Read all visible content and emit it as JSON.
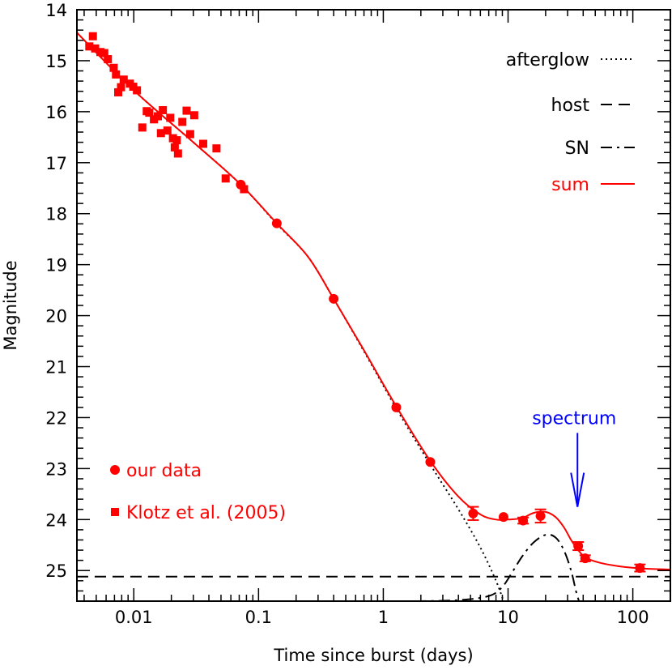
{
  "chart_data": {
    "type": "scatter",
    "xlabel": "Time since burst (days)",
    "ylabel": "Magnitude",
    "x_scale": "log",
    "xlim": [
      0.0035,
      200
    ],
    "ylim": [
      25.6,
      14
    ],
    "y_inverted": true,
    "x_ticks": [
      {
        "value": 0.01,
        "label": "0.01"
      },
      {
        "value": 0.1,
        "label": "0.1"
      },
      {
        "value": 1,
        "label": "1"
      },
      {
        "value": 10,
        "label": "10"
      },
      {
        "value": 100,
        "label": "100"
      }
    ],
    "y_ticks": [
      {
        "value": 14,
        "label": "14"
      },
      {
        "value": 15,
        "label": "15"
      },
      {
        "value": 16,
        "label": "16"
      },
      {
        "value": 17,
        "label": "17"
      },
      {
        "value": 18,
        "label": "18"
      },
      {
        "value": 19,
        "label": "19"
      },
      {
        "value": 20,
        "label": "20"
      },
      {
        "value": 21,
        "label": "21"
      },
      {
        "value": 22,
        "label": "22"
      },
      {
        "value": 23,
        "label": "23"
      },
      {
        "value": 24,
        "label": "24"
      },
      {
        "value": 25,
        "label": "25"
      }
    ],
    "series": [
      {
        "name": "our data",
        "marker": "circle",
        "color": "#ff0000",
        "points": [
          {
            "x": 0.072,
            "y": 17.43
          },
          {
            "x": 0.14,
            "y": 18.19
          },
          {
            "x": 0.4,
            "y": 19.67
          },
          {
            "x": 1.27,
            "y": 21.8
          },
          {
            "x": 2.38,
            "y": 22.87
          },
          {
            "x": 5.25,
            "y": 23.88,
            "err": 0.13
          },
          {
            "x": 9.2,
            "y": 23.95
          },
          {
            "x": 13.2,
            "y": 24.02,
            "err": 0.06
          },
          {
            "x": 18.2,
            "y": 23.93,
            "err": 0.13
          },
          {
            "x": 36.5,
            "y": 24.52,
            "err": 0.08
          },
          {
            "x": 41.5,
            "y": 24.76,
            "err": 0.06
          },
          {
            "x": 114,
            "y": 24.95,
            "err": 0.07
          }
        ]
      },
      {
        "name": "Klotz et al. (2005)",
        "marker": "square",
        "color": "#ff0000",
        "points": [
          {
            "x": 0.0044,
            "y": 14.72
          },
          {
            "x": 0.0047,
            "y": 14.52
          },
          {
            "x": 0.0049,
            "y": 14.76
          },
          {
            "x": 0.0054,
            "y": 14.83
          },
          {
            "x": 0.0058,
            "y": 14.85
          },
          {
            "x": 0.0062,
            "y": 14.97
          },
          {
            "x": 0.0069,
            "y": 15.14
          },
          {
            "x": 0.0072,
            "y": 15.27
          },
          {
            "x": 0.0075,
            "y": 15.62
          },
          {
            "x": 0.0079,
            "y": 15.52
          },
          {
            "x": 0.0083,
            "y": 15.37
          },
          {
            "x": 0.0093,
            "y": 15.45
          },
          {
            "x": 0.0099,
            "y": 15.51
          },
          {
            "x": 0.0106,
            "y": 15.58
          },
          {
            "x": 0.0117,
            "y": 16.31
          },
          {
            "x": 0.0127,
            "y": 15.99
          },
          {
            "x": 0.0133,
            "y": 16.02
          },
          {
            "x": 0.0145,
            "y": 16.15
          },
          {
            "x": 0.0156,
            "y": 16.09
          },
          {
            "x": 0.0165,
            "y": 16.42
          },
          {
            "x": 0.0171,
            "y": 15.97
          },
          {
            "x": 0.0186,
            "y": 16.37
          },
          {
            "x": 0.0196,
            "y": 16.12
          },
          {
            "x": 0.0206,
            "y": 16.52
          },
          {
            "x": 0.0213,
            "y": 16.7
          },
          {
            "x": 0.0221,
            "y": 16.56
          },
          {
            "x": 0.0226,
            "y": 16.82
          },
          {
            "x": 0.0245,
            "y": 16.2
          },
          {
            "x": 0.0265,
            "y": 15.98
          },
          {
            "x": 0.0283,
            "y": 16.44
          },
          {
            "x": 0.0305,
            "y": 16.07
          },
          {
            "x": 0.036,
            "y": 16.63
          },
          {
            "x": 0.046,
            "y": 16.72
          },
          {
            "x": 0.0545,
            "y": 17.31
          },
          {
            "x": 0.0765,
            "y": 17.52
          }
        ]
      }
    ],
    "models": [
      {
        "name": "afterglow",
        "style": "dotted",
        "color": "#000000",
        "points": [
          [
            0.0035,
            14.45
          ],
          [
            0.01,
            15.58
          ],
          [
            0.03,
            16.6
          ],
          [
            0.07,
            17.4
          ],
          [
            0.14,
            18.2
          ],
          [
            0.25,
            18.85
          ],
          [
            0.4,
            19.67
          ],
          [
            0.7,
            20.7
          ],
          [
            1.27,
            21.82
          ],
          [
            2.38,
            22.92
          ],
          [
            4,
            23.8
          ],
          [
            6,
            24.55
          ],
          [
            8,
            25.2
          ],
          [
            9.2,
            25.6
          ]
        ]
      },
      {
        "name": "host",
        "style": "dashed",
        "color": "#000000",
        "points": [
          [
            0.0035,
            25.12
          ],
          [
            200,
            25.12
          ]
        ]
      },
      {
        "name": "SN",
        "style": "dashdot",
        "color": "#000000",
        "points": [
          [
            1.8,
            25.6
          ],
          [
            4,
            25.58
          ],
          [
            7,
            25.5
          ],
          [
            9,
            25.32
          ],
          [
            11,
            25.0
          ],
          [
            13,
            24.72
          ],
          [
            16,
            24.45
          ],
          [
            20,
            24.3
          ],
          [
            24,
            24.35
          ],
          [
            28,
            24.6
          ],
          [
            32,
            25.0
          ],
          [
            35,
            25.4
          ],
          [
            37,
            25.6
          ]
        ]
      },
      {
        "name": "sum",
        "style": "solid",
        "color": "#ff0000",
        "points": [
          [
            0.0035,
            14.45
          ],
          [
            0.01,
            15.58
          ],
          [
            0.03,
            16.6
          ],
          [
            0.07,
            17.4
          ],
          [
            0.14,
            18.19
          ],
          [
            0.25,
            18.85
          ],
          [
            0.4,
            19.67
          ],
          [
            0.7,
            20.68
          ],
          [
            1.27,
            21.78
          ],
          [
            2.38,
            22.85
          ],
          [
            4,
            23.55
          ],
          [
            6,
            23.9
          ],
          [
            8,
            24.0
          ],
          [
            10,
            24.0
          ],
          [
            13,
            23.97
          ],
          [
            16,
            23.87
          ],
          [
            20,
            23.85
          ],
          [
            24,
            23.95
          ],
          [
            28,
            24.15
          ],
          [
            32,
            24.4
          ],
          [
            36,
            24.58
          ],
          [
            42,
            24.75
          ],
          [
            55,
            24.85
          ],
          [
            80,
            24.92
          ],
          [
            120,
            24.96
          ],
          [
            200,
            24.98
          ]
        ]
      }
    ],
    "legend": {
      "placement": "top-right",
      "entries": [
        {
          "label": "afterglow",
          "style": "dotted",
          "color": "#000000"
        },
        {
          "label": "host",
          "style": "dashed",
          "color": "#000000"
        },
        {
          "label": "SN",
          "style": "dashdot",
          "color": "#000000"
        },
        {
          "label": "sum",
          "style": "solid",
          "color": "#ff0000"
        }
      ]
    },
    "data_legend": {
      "placement": "bottom-left",
      "entries": [
        {
          "label": "our data",
          "marker": "circle",
          "color": "#ff0000"
        },
        {
          "label": "Klotz et al. (2005)",
          "marker": "square",
          "color": "#ff0000"
        }
      ]
    },
    "annotation": {
      "text": "spectrum",
      "x": 36,
      "y_text": 22.0,
      "arrow_from": 22.3,
      "arrow_to": 23.75,
      "color": "#0000ff"
    }
  }
}
